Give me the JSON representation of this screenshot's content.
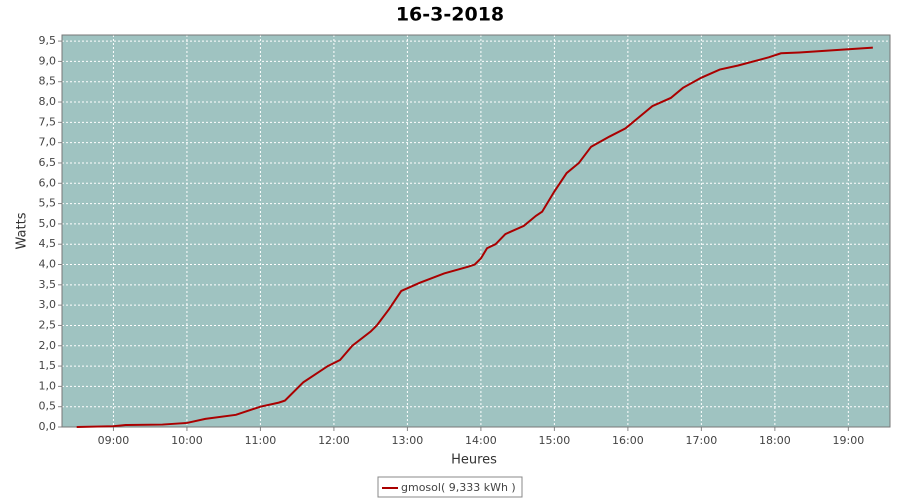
{
  "chart_data": {
    "type": "line",
    "title": "16-3-2018",
    "x_label": "Heures",
    "y_label": "Watts",
    "x": [
      "08:30",
      "09:00",
      "09:10",
      "09:40",
      "10:00",
      "10:15",
      "10:40",
      "11:00",
      "11:15",
      "11:20",
      "11:35",
      "11:45",
      "11:55",
      "12:05",
      "12:15",
      "12:30",
      "12:35",
      "12:45",
      "12:55",
      "13:10",
      "13:30",
      "13:50",
      "13:55",
      "14:00",
      "14:05",
      "14:12",
      "14:20",
      "14:35",
      "14:45",
      "14:50",
      "15:00",
      "15:10",
      "15:20",
      "15:30",
      "15:45",
      "15:58",
      "16:10",
      "16:20",
      "16:35",
      "16:45",
      "17:00",
      "17:15",
      "17:30",
      "17:55",
      "18:05",
      "18:20",
      "19:00",
      "19:20"
    ],
    "series": [
      {
        "name": "gmosol( 9,333 kWh )",
        "color": "#aa0000",
        "values": [
          0,
          0.02,
          0.05,
          0.06,
          0.1,
          0.2,
          0.3,
          0.5,
          0.6,
          0.65,
          1.1,
          1.3,
          1.5,
          1.65,
          2.0,
          2.35,
          2.5,
          2.9,
          3.35,
          3.55,
          3.78,
          3.95,
          4.0,
          4.15,
          4.4,
          4.5,
          4.75,
          4.95,
          5.2,
          5.3,
          5.8,
          6.25,
          6.5,
          6.9,
          7.15,
          7.35,
          7.65,
          7.9,
          8.1,
          8.35,
          8.6,
          8.8,
          8.9,
          9.1,
          9.2,
          9.22,
          9.3,
          9.34
        ]
      }
    ],
    "xlim": [
      "08:18",
      "19:34"
    ],
    "xticks": [
      "09:00",
      "10:00",
      "11:00",
      "12:00",
      "13:00",
      "14:00",
      "15:00",
      "16:00",
      "17:00",
      "18:00",
      "19:00"
    ],
    "ylim": [
      0,
      9.65
    ],
    "yticks": [
      {
        "value": 0,
        "label": "0,0"
      },
      {
        "value": 0.5,
        "label": "0,5"
      },
      {
        "value": 1,
        "label": "1,0"
      },
      {
        "value": 1.5,
        "label": "1,5"
      },
      {
        "value": 2,
        "label": "2,0"
      },
      {
        "value": 2.5,
        "label": "2,5"
      },
      {
        "value": 3,
        "label": "3,0"
      },
      {
        "value": 3.5,
        "label": "3,5"
      },
      {
        "value": 4,
        "label": "4,0"
      },
      {
        "value": 4.5,
        "label": "4,5"
      },
      {
        "value": 5,
        "label": "5,0"
      },
      {
        "value": 5.5,
        "label": "5,5"
      },
      {
        "value": 6,
        "label": "6,0"
      },
      {
        "value": 6.5,
        "label": "6,5"
      },
      {
        "value": 7,
        "label": "7,0"
      },
      {
        "value": 7.5,
        "label": "7,5"
      },
      {
        "value": 8,
        "label": "8,0"
      },
      {
        "value": 8.5,
        "label": "8,5"
      },
      {
        "value": 9,
        "label": "9,0"
      },
      {
        "value": 9.5,
        "label": "9,5"
      }
    ],
    "grid": true,
    "plot_background": "#9fc3c1",
    "legend": "bottom"
  }
}
